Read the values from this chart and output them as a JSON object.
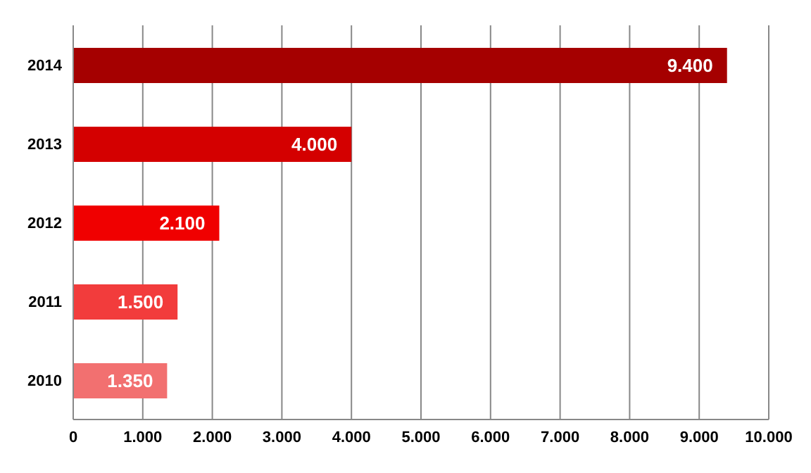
{
  "chart_data": {
    "type": "bar",
    "orientation": "horizontal",
    "categories": [
      "2014",
      "2013",
      "2012",
      "2011",
      "2010"
    ],
    "values": [
      9400,
      4000,
      2100,
      1500,
      1350
    ],
    "colors": [
      "#a50000",
      "#d40000",
      "#f00000",
      "#f23c3c",
      "#f27070"
    ],
    "value_labels": [
      "9.400",
      "4.000",
      "2.100",
      "1.500",
      "1.350"
    ],
    "xlim": [
      0,
      10000
    ],
    "xticks": [
      0,
      {
        "value": 1000,
        "label": "1.000"
      },
      {
        "value": 2000,
        "label": "2.000"
      },
      {
        "value": 3000,
        "label": "3.000"
      },
      {
        "value": 4000,
        "label": "4.000"
      },
      {
        "value": 5000,
        "label": "5.000"
      },
      {
        "value": 6000,
        "label": "6.000"
      },
      {
        "value": 7000,
        "label": "7.000"
      },
      {
        "value": 8000,
        "label": "8.000"
      },
      {
        "value": 9000,
        "label": "9.000"
      },
      {
        "value": 10000,
        "label": "10.000"
      }
    ],
    "grid": "x"
  }
}
